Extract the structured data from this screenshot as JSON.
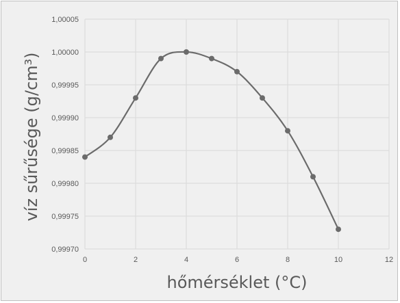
{
  "chart_data": {
    "type": "scatter",
    "title": "",
    "xlabel": "hőmérséklet (°C)",
    "ylabel": "víz sűrűsége (g/cm³)",
    "xlim": [
      0,
      12
    ],
    "ylim": [
      0.9997,
      1.00005
    ],
    "x_ticks": [
      0,
      2,
      4,
      6,
      8,
      10,
      12
    ],
    "y_ticks": [
      0.9997,
      0.99975,
      0.9998,
      0.99985,
      0.9999,
      0.99995,
      1.0,
      1.00005
    ],
    "y_tick_labels": [
      "0,99970",
      "0,99975",
      "0,99980",
      "0,99985",
      "0,99990",
      "0,99995",
      "1,00000",
      "1,00005"
    ],
    "grid": true,
    "legend": "none",
    "line": "smooth",
    "color": "#6b6b6b",
    "series": [
      {
        "x": [
          0,
          1,
          2,
          3,
          4,
          5,
          6,
          7,
          8,
          9,
          10
        ],
        "y": [
          0.99984,
          0.99987,
          0.99993,
          0.99999,
          1.0,
          0.99999,
          0.99997,
          0.99993,
          0.99988,
          0.99981,
          0.99973
        ]
      }
    ]
  }
}
